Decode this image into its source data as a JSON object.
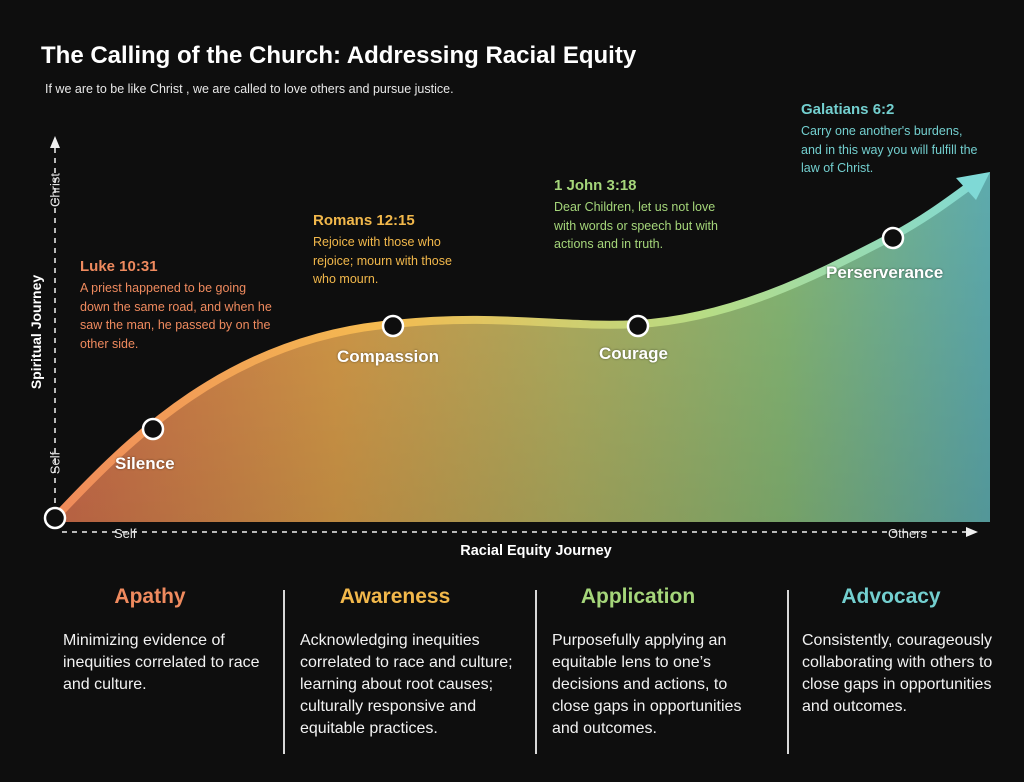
{
  "header": {
    "title": "The Calling of the Church: Addressing Racial Equity",
    "subtitle": "If we are to be like Christ , we are called to love others and pursue justice."
  },
  "axes": {
    "y_label": "Spiritual Journey",
    "y_top": "Christ",
    "y_bottom": "Self",
    "x_label": "Racial Equity Journey",
    "x_left": "Self",
    "x_right": "Others"
  },
  "stages": [
    {
      "label": "Silence"
    },
    {
      "label": "Compassion"
    },
    {
      "label": "Courage"
    },
    {
      "label": "Perserverance"
    }
  ],
  "references": [
    {
      "title": "Luke 10:31",
      "body": "A priest happened to be going down the same road, and when he saw the man, he passed by on the other side.",
      "color": "#ef8a5e"
    },
    {
      "title": "Romans 12:15",
      "body": "Rejoice with those who rejoice; mourn with those who mourn.",
      "color": "#f2b84b"
    },
    {
      "title": "1 John 3:18",
      "body": "Dear Children, let us not love with words or speech but with actions and in truth.",
      "color": "#a5d67a"
    },
    {
      "title": "Galatians 6:2",
      "body": "Carry one another's burdens, and in this way you will fulfill the law of Christ.",
      "color": "#73cfcf"
    }
  ],
  "columns": [
    {
      "heading": "Apathy",
      "body": "Minimizing evidence of inequities correlated to race and culture.",
      "color": "#ef8a5e"
    },
    {
      "heading": "Awareness",
      "body": "Acknowledging inequities correlated to race and culture; learning about root causes; culturally responsive and equitable practices.",
      "color": "#f2b84b"
    },
    {
      "heading": "Application",
      "body": "Purposefully applying an equitable lens to one’s decisions and actions, to close gaps in opportunities and outcomes.",
      "color": "#a5d67a"
    },
    {
      "heading": "Advocacy",
      "body": "Consistently, courageously collaborating with others to close gaps in opportunities and outcomes.",
      "color": "#73cfcf"
    }
  ],
  "colors": {
    "background": "#0e0e0e",
    "gradient_start": "#e07a55",
    "gradient_mid": "#f0b04a",
    "gradient_green": "#a5d67a",
    "gradient_end": "#6ac2c6"
  }
}
